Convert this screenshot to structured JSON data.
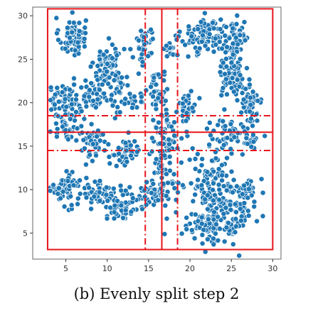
{
  "caption": "(b) Evenly split step 2",
  "chart_data": {
    "type": "scatter",
    "title": "",
    "xlabel": "",
    "ylabel": "",
    "xlim": [
      1,
      31
    ],
    "ylim": [
      2,
      31
    ],
    "x_ticks": [
      5,
      10,
      15,
      20,
      25,
      30
    ],
    "y_ticks": [
      5,
      10,
      15,
      20,
      25,
      30
    ],
    "x_tick_labels": [
      "5",
      "10",
      "15",
      "20",
      "25",
      "30"
    ],
    "y_tick_labels": [
      "5",
      "10",
      "15",
      "20",
      "25",
      "30"
    ],
    "grid": false,
    "point_color": "#1f77b4",
    "point_edge_color": "#ffffff",
    "split_color": "#e8141a",
    "bounding_box": {
      "x": [
        2.8,
        30
      ],
      "y": [
        3.1,
        30.8
      ]
    },
    "solid_splits": {
      "vertical": [
        16.6
      ],
      "horizontal": [
        16.6
      ]
    },
    "dashed_splits": {
      "vertical": [
        14.6,
        18.5
      ],
      "horizontal": [
        14.5,
        18.5
      ]
    },
    "clusters": [
      {
        "cx": 5.8,
        "cy": 27.6,
        "sx": 0.8,
        "sy": 1.1,
        "n": 70
      },
      {
        "cx": 10.2,
        "cy": 24.3,
        "sx": 0.9,
        "sy": 1.2,
        "n": 80
      },
      {
        "cx": 14.5,
        "cy": 26.7,
        "sx": 0.6,
        "sy": 1.3,
        "n": 40
      },
      {
        "cx": 17.6,
        "cy": 26.2,
        "sx": 0.5,
        "sy": 0.7,
        "n": 15
      },
      {
        "cx": 22.0,
        "cy": 27.6,
        "sx": 1.5,
        "sy": 1.0,
        "n": 95
      },
      {
        "cx": 25.6,
        "cy": 27.4,
        "sx": 0.8,
        "sy": 1.4,
        "n": 55
      },
      {
        "cx": 25.2,
        "cy": 23.5,
        "sx": 0.9,
        "sy": 1.5,
        "n": 80
      },
      {
        "cx": 27.2,
        "cy": 20.3,
        "sx": 0.8,
        "sy": 1.3,
        "n": 55
      },
      {
        "cx": 25.5,
        "cy": 16.2,
        "sx": 2.0,
        "sy": 1.0,
        "n": 75
      },
      {
        "cx": 19.7,
        "cy": 19.6,
        "sx": 0.5,
        "sy": 0.9,
        "n": 30
      },
      {
        "cx": 4.5,
        "cy": 20.3,
        "sx": 1.0,
        "sy": 0.9,
        "n": 45
      },
      {
        "cx": 8.0,
        "cy": 20.8,
        "sx": 1.4,
        "sy": 1.1,
        "n": 60
      },
      {
        "cx": 12.5,
        "cy": 20.7,
        "sx": 1.0,
        "sy": 1.0,
        "n": 40
      },
      {
        "cx": 16.3,
        "cy": 21.3,
        "sx": 0.7,
        "sy": 1.1,
        "n": 40
      },
      {
        "cx": 5.2,
        "cy": 17.2,
        "sx": 0.9,
        "sy": 0.9,
        "n": 40
      },
      {
        "cx": 8.3,
        "cy": 15.4,
        "sx": 0.9,
        "sy": 0.9,
        "n": 45
      },
      {
        "cx": 12.2,
        "cy": 14.3,
        "sx": 1.0,
        "sy": 0.8,
        "n": 50
      },
      {
        "cx": 16.9,
        "cy": 16.1,
        "sx": 0.8,
        "sy": 1.5,
        "n": 55
      },
      {
        "cx": 16.9,
        "cy": 11.5,
        "sx": 0.8,
        "sy": 1.8,
        "n": 60
      },
      {
        "cx": 15.5,
        "cy": 9.3,
        "sx": 0.9,
        "sy": 0.7,
        "n": 45
      },
      {
        "cx": 4.9,
        "cy": 10.1,
        "sx": 0.8,
        "sy": 0.9,
        "n": 60
      },
      {
        "cx": 8.9,
        "cy": 9.7,
        "sx": 1.0,
        "sy": 0.8,
        "n": 55
      },
      {
        "cx": 11.8,
        "cy": 8.1,
        "sx": 0.9,
        "sy": 0.9,
        "n": 55
      },
      {
        "cx": 22.5,
        "cy": 9.8,
        "sx": 1.3,
        "sy": 2.3,
        "n": 120
      },
      {
        "cx": 25.1,
        "cy": 7.6,
        "sx": 1.5,
        "sy": 1.7,
        "n": 100
      },
      {
        "cx": 27.2,
        "cy": 10.2,
        "sx": 0.6,
        "sy": 0.7,
        "n": 25
      },
      {
        "cx": 21.9,
        "cy": 5.5,
        "sx": 1.2,
        "sy": 0.7,
        "n": 45
      }
    ]
  }
}
